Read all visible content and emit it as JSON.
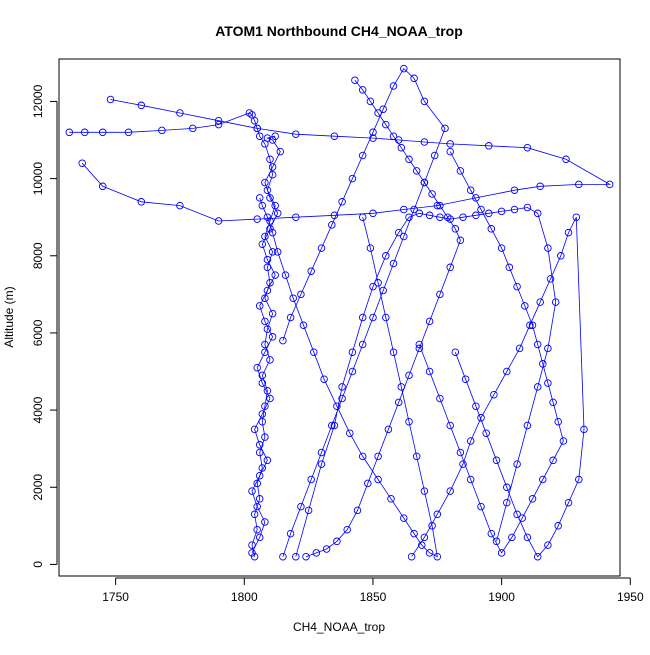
{
  "chart_data": {
    "type": "scatter",
    "title": "ATOM1 Northbound CH4_NOAA_trop",
    "xlabel": "CH4_NOAA_trop",
    "ylabel": "Altitude (m)",
    "xlim": [
      1728,
      1946
    ],
    "ylim": [
      -300,
      13100
    ],
    "xticks": [
      1750,
      1800,
      1850,
      1900,
      1950
    ],
    "yticks": [
      0,
      2000,
      4000,
      6000,
      8000,
      10000,
      12000
    ],
    "grid": false,
    "legend": "none",
    "color": "#0000ff",
    "series": [
      {
        "x": [
          1804,
          1803,
          1805,
          1804,
          1806,
          1805,
          1807,
          1806,
          1808,
          1807,
          1808,
          1809,
          1807,
          1810,
          1808,
          1809,
          1811,
          1808,
          1810,
          1809,
          1811,
          1808,
          1810,
          1812,
          1809,
          1811,
          1810,
          1808,
          1806,
          1805,
          1804,
          1803,
          1802,
          1790,
          1780,
          1768,
          1755,
          1745,
          1738,
          1732
        ],
        "y": [
          200,
          500,
          900,
          1300,
          1700,
          2100,
          2500,
          2900,
          3300,
          3700,
          4100,
          4500,
          4900,
          5300,
          5700,
          6100,
          6500,
          6900,
          7300,
          7700,
          8100,
          8500,
          8900,
          9300,
          9700,
          10100,
          10500,
          10900,
          11100,
          11300,
          11500,
          11650,
          11700,
          11400,
          11300,
          11250,
          11200,
          11200,
          11200,
          11200
        ]
      },
      {
        "x": [
          1748,
          1760,
          1775,
          1790,
          1805,
          1820,
          1835,
          1850,
          1860,
          1870,
          1880,
          1895,
          1910,
          1925,
          1942,
          1930,
          1915,
          1905,
          1890,
          1875,
          1862,
          1850,
          1835,
          1820,
          1805,
          1790,
          1775,
          1760,
          1745,
          1737
        ],
        "y": [
          12050,
          11900,
          11700,
          11500,
          11300,
          11150,
          11100,
          11050,
          11000,
          10950,
          10900,
          10850,
          10800,
          10500,
          9850,
          9850,
          9800,
          9700,
          9500,
          9300,
          9200,
          9100,
          9050,
          9000,
          8950,
          8900,
          9300,
          9400,
          9800,
          10400
        ]
      },
      {
        "x": [
          1815,
          1818,
          1822,
          1826,
          1830,
          1834,
          1838,
          1842,
          1846,
          1850,
          1854,
          1858,
          1862,
          1866,
          1870,
          1874,
          1878,
          1870,
          1866,
          1862,
          1858,
          1854,
          1850,
          1846,
          1842,
          1838,
          1834,
          1830,
          1826,
          1822,
          1818,
          1815
        ],
        "y": [
          200,
          800,
          1500,
          2200,
          2900,
          3600,
          4300,
          5000,
          5700,
          6400,
          7100,
          7800,
          8500,
          9200,
          9900,
          10600,
          11300,
          12000,
          12600,
          12850,
          12400,
          11800,
          11200,
          10600,
          10000,
          9400,
          8800,
          8200,
          7600,
          7000,
          6400,
          5800
        ]
      },
      {
        "x": [
          1865,
          1870,
          1875,
          1880,
          1885,
          1888,
          1892,
          1897,
          1902,
          1907,
          1911,
          1915,
          1919,
          1923,
          1926,
          1929,
          1932,
          1930,
          1926,
          1922,
          1918,
          1914,
          1910,
          1906,
          1902,
          1898,
          1894,
          1890,
          1886,
          1882
        ],
        "y": [
          200,
          700,
          1300,
          1900,
          2600,
          3200,
          3800,
          4400,
          5000,
          5600,
          6200,
          6800,
          7400,
          8000,
          8600,
          9000,
          3500,
          2200,
          1600,
          1000,
          500,
          200,
          700,
          1300,
          2000,
          2700,
          3400,
          4100,
          4800,
          5500
        ]
      },
      {
        "x": [
          1820,
          1825,
          1830,
          1835,
          1838,
          1842,
          1846,
          1850,
          1855,
          1860,
          1864,
          1868,
          1872,
          1876,
          1880,
          1885,
          1890,
          1895,
          1900,
          1905,
          1910,
          1914,
          1918,
          1921,
          1918,
          1914,
          1910,
          1906,
          1902,
          1898
        ],
        "y": [
          200,
          1400,
          2600,
          3600,
          4600,
          5500,
          6400,
          7200,
          8000,
          8600,
          9000,
          9100,
          9050,
          9000,
          8950,
          9000,
          9050,
          9100,
          9150,
          9200,
          9250,
          9100,
          8200,
          6800,
          5600,
          4600,
          3600,
          2600,
          1600,
          600
        ]
      },
      {
        "x": [
          1806,
          1807,
          1809,
          1811,
          1813,
          1816,
          1819,
          1823,
          1827,
          1831,
          1836,
          1841,
          1846,
          1852,
          1857,
          1862,
          1866,
          1869,
          1872,
          1875,
          1873,
          1870,
          1867,
          1864,
          1861,
          1858,
          1855,
          1852,
          1849,
          1846
        ],
        "y": [
          9500,
          9300,
          9000,
          8600,
          8100,
          7500,
          6900,
          6200,
          5500,
          4800,
          4100,
          3400,
          2800,
          2200,
          1700,
          1200,
          800,
          500,
          300,
          200,
          1000,
          1900,
          2800,
          3700,
          4600,
          5500,
          6400,
          7300,
          8200,
          9000
        ]
      },
      {
        "x": [
          1843,
          1846,
          1849,
          1852,
          1855,
          1858,
          1861,
          1864,
          1867,
          1870,
          1873,
          1876,
          1879,
          1882,
          1884,
          1880,
          1876,
          1872,
          1868,
          1864,
          1860,
          1856,
          1852,
          1848,
          1844,
          1840,
          1836,
          1832,
          1828,
          1824
        ],
        "y": [
          12550,
          12300,
          12000,
          11700,
          11400,
          11100,
          10800,
          10500,
          10200,
          9900,
          9600,
          9300,
          9000,
          8700,
          8400,
          7700,
          7000,
          6300,
          5600,
          4900,
          4200,
          3500,
          2800,
          2100,
          1400,
          900,
          600,
          400,
          300,
          200
        ]
      },
      {
        "x": [
          1880,
          1884,
          1888,
          1892,
          1896,
          1900,
          1903,
          1906,
          1909,
          1912,
          1914,
          1916,
          1918,
          1920,
          1922,
          1924,
          1920,
          1916,
          1912,
          1908,
          1904,
          1900,
          1896,
          1892,
          1888,
          1884,
          1880,
          1876,
          1872,
          1868
        ],
        "y": [
          10700,
          10200,
          9700,
          9200,
          8700,
          8200,
          7700,
          7200,
          6700,
          6200,
          5700,
          5200,
          4700,
          4200,
          3700,
          3200,
          2700,
          2200,
          1700,
          1200,
          700,
          300,
          800,
          1500,
          2200,
          2900,
          3600,
          4300,
          5000,
          5700
        ]
      },
      {
        "x": [
          1803,
          1806,
          1808,
          1805,
          1803,
          1806,
          1809,
          1806,
          1804,
          1807,
          1810,
          1807,
          1805,
          1808,
          1811,
          1808,
          1806,
          1809,
          1812,
          1809,
          1807,
          1810,
          1813,
          1810,
          1808,
          1811,
          1814,
          1811,
          1809,
          1812
        ],
        "y": [
          300,
          700,
          1100,
          1500,
          1900,
          2300,
          2700,
          3100,
          3500,
          3900,
          4300,
          4700,
          5100,
          5500,
          5900,
          6300,
          6700,
          7100,
          7500,
          7900,
          8300,
          8700,
          9100,
          9500,
          9900,
          10300,
          10700,
          11000,
          11050,
          11100
        ]
      }
    ]
  }
}
